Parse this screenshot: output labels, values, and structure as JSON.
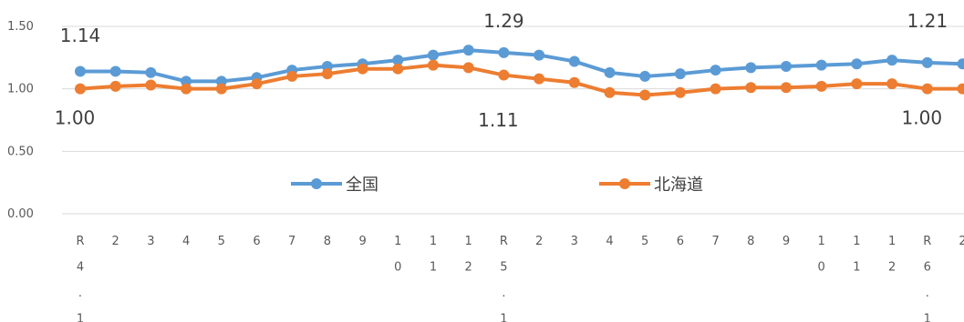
{
  "chart_data": {
    "type": "line",
    "title": "",
    "xlabel": "",
    "ylabel": "",
    "ylim": [
      0,
      1.5
    ],
    "yticks": [
      "0.00",
      "0.50",
      "1.00",
      "1.50"
    ],
    "grid": true,
    "legend_position": "center",
    "categories": [
      "R4.1",
      "2",
      "3",
      "4",
      "5",
      "6",
      "7",
      "8",
      "9",
      "10",
      "11",
      "12",
      "R5.1",
      "2",
      "3",
      "4",
      "5",
      "6",
      "7",
      "8",
      "9",
      "10",
      "11",
      "12",
      "R6.1",
      "2"
    ],
    "series": [
      {
        "name": "全国",
        "color": "#5B9BD5",
        "values": [
          1.14,
          1.14,
          1.13,
          1.06,
          1.06,
          1.09,
          1.15,
          1.18,
          1.2,
          1.23,
          1.27,
          1.31,
          1.29,
          1.27,
          1.22,
          1.13,
          1.1,
          1.12,
          1.15,
          1.17,
          1.18,
          1.19,
          1.2,
          1.23,
          1.21,
          1.2
        ]
      },
      {
        "name": "北海道",
        "color": "#ED7D31",
        "values": [
          1.0,
          1.02,
          1.03,
          1.0,
          1.0,
          1.04,
          1.1,
          1.12,
          1.16,
          1.16,
          1.19,
          1.17,
          1.11,
          1.08,
          1.05,
          0.97,
          0.95,
          0.97,
          1.0,
          1.01,
          1.01,
          1.02,
          1.04,
          1.04,
          1.0,
          1.0
        ]
      }
    ],
    "annotations": [
      {
        "series": 0,
        "index": 0,
        "text": "1.14"
      },
      {
        "series": 0,
        "index": 12,
        "text": "1.29"
      },
      {
        "series": 0,
        "index": 24,
        "text": "1.21"
      },
      {
        "series": 1,
        "index": 0,
        "text": "1.00"
      },
      {
        "series": 1,
        "index": 12,
        "text": "1.11"
      },
      {
        "series": 1,
        "index": 24,
        "text": "1.00"
      }
    ]
  }
}
